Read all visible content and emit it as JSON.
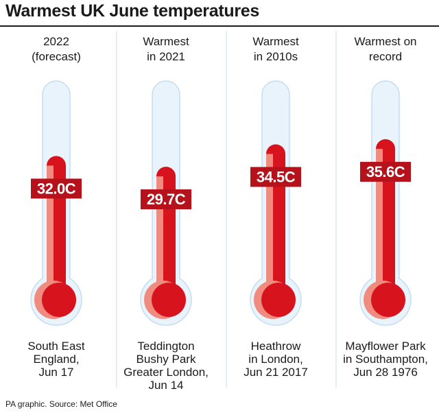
{
  "title": "Warmest UK June temperatures",
  "source": "PA graphic. Source: Met Office",
  "colors": {
    "tube_fill": "#e9f3fb",
    "tube_stroke": "#c3ddef",
    "mercury": "#d7141e",
    "mercury_shade": "#ef8b7f",
    "label_bg": "#b5121b",
    "divider": "#c3ddef"
  },
  "chart_data": {
    "type": "bar",
    "unit": "C",
    "categories": [
      "2022 (forecast)",
      "Warmest in 2021",
      "Warmest in 2010s",
      "Warmest on record"
    ],
    "values": [
      32.0,
      29.7,
      34.5,
      35.6
    ],
    "ylim": [
      0,
      40
    ],
    "columns": [
      {
        "heading": [
          "2022",
          "(forecast)"
        ],
        "value": 32.0,
        "value_label": "32.0C",
        "location": [
          "South East",
          "England,",
          "Jun 17"
        ]
      },
      {
        "heading": [
          "Warmest",
          "in 2021"
        ],
        "value": 29.7,
        "value_label": "29.7C",
        "location": [
          "Teddington",
          "Bushy Park",
          "Greater London,",
          "Jun 14"
        ]
      },
      {
        "heading": [
          "Warmest",
          "in 2010s"
        ],
        "value": 34.5,
        "value_label": "34.5C",
        "location": [
          "Heathrow",
          "in London,",
          "Jun 21 2017"
        ]
      },
      {
        "heading": [
          "Warmest on",
          "record"
        ],
        "value": 35.6,
        "value_label": "35.6C",
        "location": [
          "Mayflower Park",
          "in Southampton,",
          "Jun 28 1976"
        ]
      }
    ]
  }
}
